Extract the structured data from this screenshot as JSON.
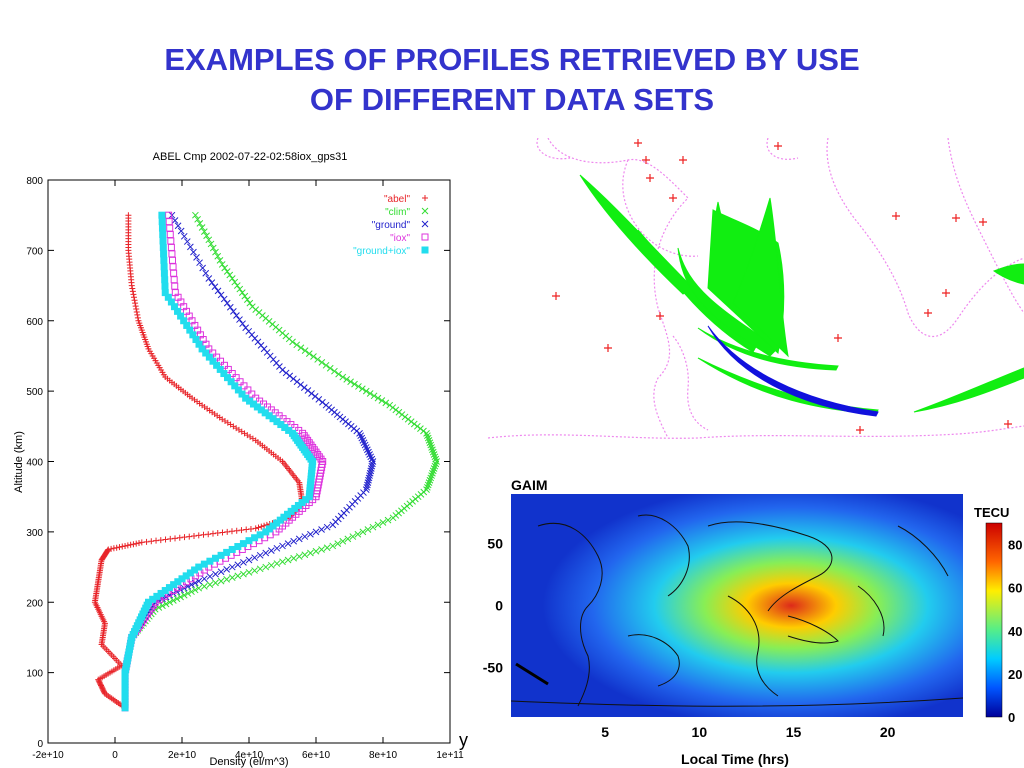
{
  "slide": {
    "title_line1": "EXAMPLES OF PROFILES RETRIEVED BY USE",
    "title_line2": "OF DIFFERENT DATA SETS",
    "stray_text": "y"
  },
  "chart_data": [
    {
      "type": "scatter",
      "title": "ABEL Cmp  2002-07-22-02:58iox_gps31",
      "xlabel": "Density (el/m^3)",
      "ylabel": "Altitude (km)",
      "xlim": [
        -20000000000.0,
        100000000000.0
      ],
      "ylim": [
        0,
        800
      ],
      "x_tick_labels": [
        "-2e+10",
        "0",
        "2e+10",
        "4e+10",
        "6e+10",
        "8e+10",
        "1e+11"
      ],
      "x_tick_values": [
        -20000000000.0,
        0,
        20000000000.0,
        40000000000.0,
        60000000000.0,
        80000000000.0,
        100000000000.0
      ],
      "y_tick_labels": [
        "0",
        "100",
        "200",
        "300",
        "400",
        "500",
        "600",
        "700",
        "800"
      ],
      "y_tick_values": [
        0,
        100,
        200,
        300,
        400,
        500,
        600,
        700,
        800
      ],
      "legend_position": "top-right",
      "series": [
        {
          "name": "\"abel\"",
          "color": "#e8252a",
          "marker": "+",
          "points": [
            [
              3000000000.0,
              50
            ],
            [
              -3000000000.0,
              70
            ],
            [
              -5000000000.0,
              90
            ],
            [
              2000000000.0,
              110
            ],
            [
              -4000000000.0,
              140
            ],
            [
              -3000000000.0,
              170
            ],
            [
              -6000000000.0,
              200
            ],
            [
              -5000000000.0,
              230
            ],
            [
              -4000000000.0,
              260
            ],
            [
              -2000000000.0,
              275
            ],
            [
              8000000000.0,
              285
            ],
            [
              25000000000.0,
              295
            ],
            [
              42000000000.0,
              305
            ],
            [
              52000000000.0,
              320
            ],
            [
              56000000000.0,
              340
            ],
            [
              55000000000.0,
              370
            ],
            [
              50000000000.0,
              400
            ],
            [
              42000000000.0,
              430
            ],
            [
              32000000000.0,
              460
            ],
            [
              23000000000.0,
              490
            ],
            [
              15000000000.0,
              520
            ],
            [
              10000000000.0,
              560
            ],
            [
              7000000000.0,
              600
            ],
            [
              5000000000.0,
              650
            ],
            [
              4000000000.0,
              700
            ],
            [
              4000000000.0,
              750
            ]
          ]
        },
        {
          "name": "\"clim\"",
          "color": "#33dd33",
          "marker": "x",
          "points": [
            [
              3000000000.0,
              50
            ],
            [
              3000000000.0,
              100
            ],
            [
              5000000000.0,
              150
            ],
            [
              12000000000.0,
              190
            ],
            [
              25000000000.0,
              220
            ],
            [
              45000000000.0,
              250
            ],
            [
              65000000000.0,
              280
            ],
            [
              83000000000.0,
              320
            ],
            [
              93000000000.0,
              360
            ],
            [
              96000000000.0,
              400
            ],
            [
              93000000000.0,
              440
            ],
            [
              82000000000.0,
              480
            ],
            [
              68000000000.0,
              520
            ],
            [
              53000000000.0,
              570
            ],
            [
              41000000000.0,
              620
            ],
            [
              32000000000.0,
              680
            ],
            [
              24000000000.0,
              750
            ]
          ]
        },
        {
          "name": "\"ground\"",
          "color": "#2222cc",
          "marker": "x",
          "points": [
            [
              3000000000.0,
              50
            ],
            [
              3000000000.0,
              100
            ],
            [
              5000000000.0,
              150
            ],
            [
              12000000000.0,
              200
            ],
            [
              25000000000.0,
              230
            ],
            [
              45000000000.0,
              270
            ],
            [
              65000000000.0,
              310
            ],
            [
              75000000000.0,
              360
            ],
            [
              77000000000.0,
              400
            ],
            [
              73000000000.0,
              440
            ],
            [
              63000000000.0,
              480
            ],
            [
              50000000000.0,
              530
            ],
            [
              39000000000.0,
              590
            ],
            [
              28000000000.0,
              660
            ],
            [
              17000000000.0,
              750
            ]
          ]
        },
        {
          "name": "\"iox\"",
          "color": "#dd33dd",
          "marker": "square",
          "points": [
            [
              3000000000.0,
              50
            ],
            [
              3000000000.0,
              100
            ],
            [
              5000000000.0,
              150
            ],
            [
              12000000000.0,
              200
            ],
            [
              28000000000.0,
              250
            ],
            [
              48000000000.0,
              300
            ],
            [
              60000000000.0,
              350
            ],
            [
              62000000000.0,
              400
            ],
            [
              56000000000.0,
              440
            ],
            [
              42000000000.0,
              490
            ],
            [
              28000000000.0,
              560
            ],
            [
              18000000000.0,
              640
            ],
            [
              16000000000.0,
              750
            ]
          ]
        },
        {
          "name": "\"ground+iox\"",
          "color": "#22ddee",
          "marker": "filled-square",
          "points": [
            [
              3000000000.0,
              50
            ],
            [
              3000000000.0,
              100
            ],
            [
              5000000000.0,
              150
            ],
            [
              10000000000.0,
              200
            ],
            [
              25000000000.0,
              250
            ],
            [
              45000000000.0,
              300
            ],
            [
              58000000000.0,
              350
            ],
            [
              59000000000.0,
              400
            ],
            [
              53000000000.0,
              440
            ],
            [
              39000000000.0,
              490
            ],
            [
              26000000000.0,
              560
            ],
            [
              15000000000.0,
              640
            ],
            [
              14000000000.0,
              750
            ]
          ]
        }
      ]
    },
    {
      "type": "heatmap",
      "title": "GAIM",
      "xlabel": "Local Time (hrs)",
      "ylabel": "",
      "x_tick_labels": [
        "5",
        "10",
        "15",
        "20"
      ],
      "x_tick_values": [
        5,
        10,
        15,
        20
      ],
      "xlim": [
        0,
        24
      ],
      "y_tick_labels": [
        "50",
        "0",
        "-50"
      ],
      "y_tick_values": [
        50,
        0,
        -50
      ],
      "ylim": [
        -90,
        90
      ],
      "colorbar": {
        "label": "TECU",
        "tick_labels": [
          "80",
          "60",
          "40",
          "20",
          "0"
        ],
        "tick_values": [
          80,
          60,
          40,
          20,
          0
        ],
        "range": [
          0,
          90
        ]
      }
    }
  ],
  "map_panel": {
    "description_colors": {
      "track_green": "#11ee11",
      "track_blue": "#1111dd",
      "coast": "#ee88ee",
      "station": "#ee2222"
    }
  }
}
